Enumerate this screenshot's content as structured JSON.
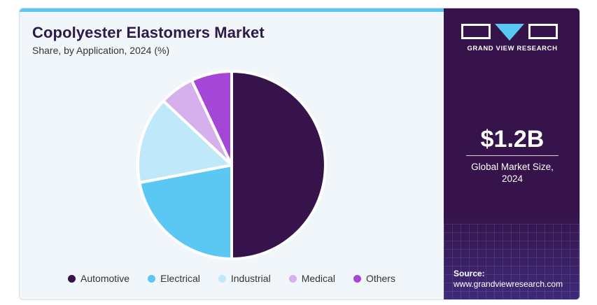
{
  "chart_data": {
    "type": "pie",
    "title": "Copolyester Elastomers Market",
    "subtitle": "Share, by Application, 2024 (%)",
    "categories": [
      "Automotive",
      "Electrical",
      "Industrial",
      "Medical",
      "Others"
    ],
    "values": [
      50,
      22,
      15,
      6,
      7
    ],
    "colors": [
      "#36134a",
      "#5ac8f2",
      "#bfe8fa",
      "#d6b0ec",
      "#a447d6"
    ],
    "legend_position": "bottom"
  },
  "side_panel": {
    "logo_text": "GRAND VIEW RESEARCH",
    "market_value": "$1.2B",
    "market_label_line1": "Global Market Size,",
    "market_label_line2": "2024",
    "source_heading": "Source:",
    "source_url": "www.grandviewresearch.com"
  }
}
